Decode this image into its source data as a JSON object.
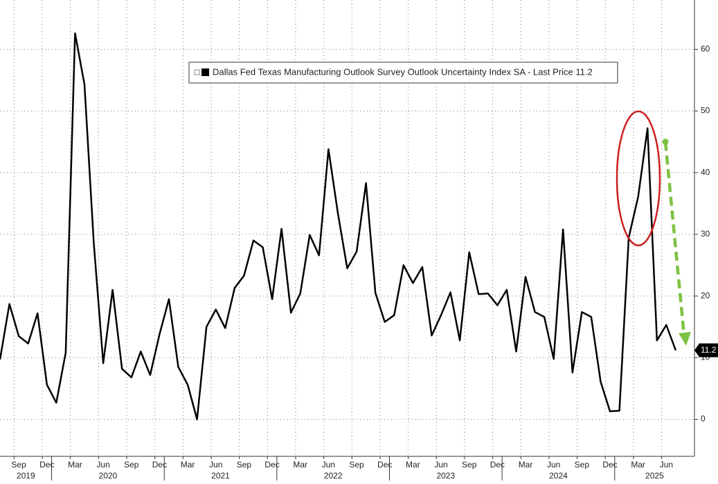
{
  "chart_data": {
    "type": "line",
    "x": [
      "2019-07",
      "2019-08",
      "2019-09",
      "2019-10",
      "2019-11",
      "2019-12",
      "2020-01",
      "2020-02",
      "2020-03",
      "2020-04",
      "2020-05",
      "2020-06",
      "2020-07",
      "2020-08",
      "2020-09",
      "2020-10",
      "2020-11",
      "2020-12",
      "2021-01",
      "2021-02",
      "2021-03",
      "2021-04",
      "2021-05",
      "2021-06",
      "2021-07",
      "2021-08",
      "2021-09",
      "2021-10",
      "2021-11",
      "2021-12",
      "2022-01",
      "2022-02",
      "2022-03",
      "2022-04",
      "2022-05",
      "2022-06",
      "2022-07",
      "2022-08",
      "2022-09",
      "2022-10",
      "2022-11",
      "2022-12",
      "2023-01",
      "2023-02",
      "2023-03",
      "2023-04",
      "2023-05",
      "2023-06",
      "2023-07",
      "2023-08",
      "2023-09",
      "2023-10",
      "2023-11",
      "2023-12",
      "2024-01",
      "2024-02",
      "2024-03",
      "2024-04",
      "2024-05",
      "2024-06",
      "2024-07",
      "2024-08",
      "2024-09",
      "2024-10",
      "2024-11",
      "2024-12",
      "2025-01",
      "2025-02",
      "2025-03",
      "2025-04",
      "2025-05",
      "2025-06",
      "2025-07"
    ],
    "series": [
      {
        "name": "Dallas Fed Texas Manufacturing Outlook Survey Outlook Uncertainty Index SA - Last Price 11.2",
        "color": "#000000",
        "values": [
          9.7,
          18.7,
          13.5,
          12.3,
          17.2,
          5.6,
          2.7,
          10.8,
          62.6,
          54.3,
          28.5,
          9.1,
          21,
          8.2,
          6.8,
          11,
          7.2,
          13.8,
          19.5,
          8.5,
          5.6,
          0,
          15,
          17.8,
          14.8,
          21.3,
          23.3,
          29,
          27.9,
          19.5,
          30.9,
          17.3,
          20.4,
          29.9,
          26.6,
          43.8,
          33.5,
          24.5,
          27.2,
          38.3,
          20.5,
          15.8,
          16.9,
          25,
          22.1,
          24.7,
          13.6,
          16.9,
          20.6,
          12.8,
          27.1,
          20.3,
          20.4,
          18.5,
          21,
          11,
          23.1,
          17.4,
          16.6,
          9.8,
          30.8,
          7.6,
          17.4,
          16.6,
          6.1,
          1.3,
          1.4,
          29.5,
          36.1,
          47.2,
          12.8,
          15.3,
          11.2
        ]
      }
    ],
    "xlim": [
      "2019-07",
      "2025-09"
    ],
    "xticks": [
      {
        "value": "2019-09",
        "label": "Sep"
      },
      {
        "value": "2019-12",
        "label": "Dec"
      },
      {
        "value": "2020-03",
        "label": "Mar"
      },
      {
        "value": "2020-06",
        "label": "Jun"
      },
      {
        "value": "2020-09",
        "label": "Sep"
      },
      {
        "value": "2020-12",
        "label": "Dec"
      },
      {
        "value": "2021-03",
        "label": "Mar"
      },
      {
        "value": "2021-06",
        "label": "Jun"
      },
      {
        "value": "2021-09",
        "label": "Sep"
      },
      {
        "value": "2021-12",
        "label": "Dec"
      },
      {
        "value": "2022-03",
        "label": "Mar"
      },
      {
        "value": "2022-06",
        "label": "Jun"
      },
      {
        "value": "2022-09",
        "label": "Sep"
      },
      {
        "value": "2022-12",
        "label": "Dec"
      },
      {
        "value": "2023-03",
        "label": "Mar"
      },
      {
        "value": "2023-06",
        "label": "Jun"
      },
      {
        "value": "2023-09",
        "label": "Sep"
      },
      {
        "value": "2023-12",
        "label": "Dec"
      },
      {
        "value": "2024-03",
        "label": "Mar"
      },
      {
        "value": "2024-06",
        "label": "Jun"
      },
      {
        "value": "2024-09",
        "label": "Sep"
      },
      {
        "value": "2024-12",
        "label": "Dec"
      },
      {
        "value": "2025-03",
        "label": "Mar"
      },
      {
        "value": "2025-06",
        "label": "Jun"
      }
    ],
    "years": [
      2019,
      2020,
      2021,
      2022,
      2023,
      2024,
      2025
    ],
    "ylim": [
      -6,
      68
    ],
    "yticks": [
      0,
      10,
      20,
      30,
      40,
      50,
      60
    ],
    "grid": true
  }
}
